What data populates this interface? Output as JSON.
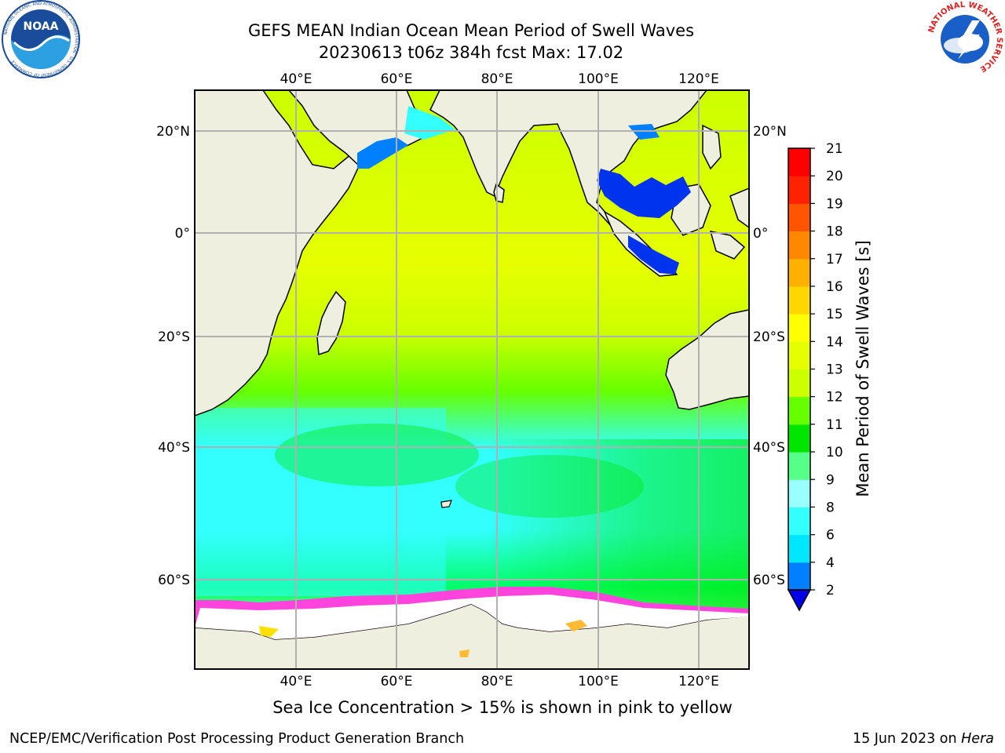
{
  "title": {
    "line1": "GEFS MEAN Indian Ocean Mean Period of Swell Waves",
    "line2": "20230613 t06z 384h fcst   Max: 17.02"
  },
  "map": {
    "lon_ticks": [
      "40°E",
      "60°E",
      "80°E",
      "100°E",
      "120°E"
    ],
    "lat_ticks": [
      "20°N",
      "0°",
      "20°S",
      "40°S",
      "60°S"
    ],
    "lon_range": [
      20,
      130
    ],
    "lat_range": [
      -73,
      27
    ]
  },
  "colorbar": {
    "label": "Mean Period of Swell Waves [s]",
    "ticks": [
      "2",
      "4",
      "6",
      "8",
      "9",
      "10",
      "11",
      "12",
      "13",
      "14",
      "15",
      "16",
      "17",
      "18",
      "19",
      "20",
      "21"
    ],
    "colors": [
      "#0000e6",
      "#0080ff",
      "#00e6ff",
      "#33ffff",
      "#99ffff",
      "#55ff88",
      "#00e600",
      "#66ff00",
      "#ccff00",
      "#e6ff00",
      "#ffff00",
      "#ffd700",
      "#ffb000",
      "#ff8800",
      "#ff5500",
      "#ff2200",
      "#ff0000"
    ],
    "extend_color": "#0000e6"
  },
  "caption": "Sea Ice Concentration > 15% is shown in pink to yellow",
  "footer": {
    "left": "NCEP/EMC/Verification Post Processing Product Generation Branch",
    "right_prefix": "15 Jun 2023 on ",
    "right_host": "Hera"
  },
  "logos": {
    "noaa_text": "NOAA",
    "noaa_ring": "NATIONAL OCEANIC AND ATMOSPHERIC ADMINISTRATION · U.S. DEPARTMENT OF COMMERCE",
    "nws_ring": "NATIONAL WEATHER SERVICE"
  }
}
